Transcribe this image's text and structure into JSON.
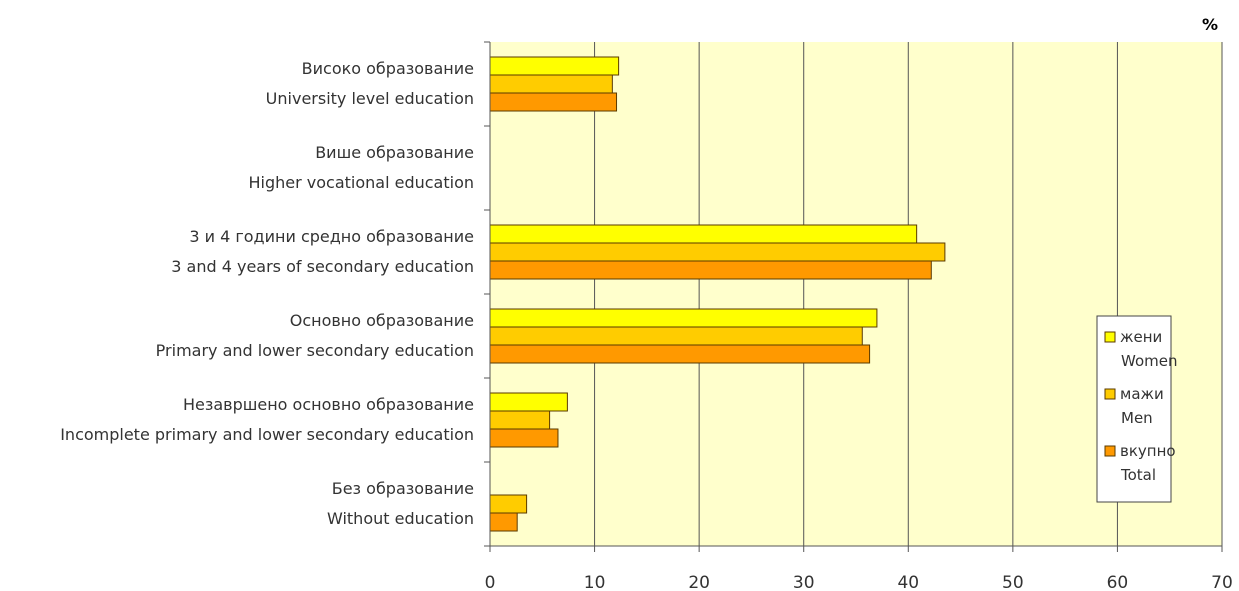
{
  "chart_data": {
    "type": "bar",
    "orientation": "horizontal",
    "unit_label": "%",
    "categories": [
      {
        "line1": "Високо образование",
        "line2": "University level education"
      },
      {
        "line1": "Више образование",
        "line2": "Higher vocational education"
      },
      {
        "line1": "3 и 4 години средно образование",
        "line2": "3 and 4 years of secondary education"
      },
      {
        "line1": "Основно образование",
        "line2": "Primary and lower secondary education"
      },
      {
        "line1": "Незавршено основно образование",
        "line2": "Incomplete primary and lower secondary education"
      },
      {
        "line1": "Без образование",
        "line2": "Without education"
      }
    ],
    "series": [
      {
        "name": "жени",
        "name_en": "Women",
        "color": "#FFFF00",
        "values": [
          12.3,
          0,
          40.8,
          37.0,
          7.4,
          0
        ]
      },
      {
        "name": "мажи",
        "name_en": "Men",
        "color": "#FFCC00",
        "values": [
          11.7,
          0,
          43.5,
          35.6,
          5.7,
          3.5
        ]
      },
      {
        "name": "вкупно",
        "name_en": "Total",
        "color": "#FF9900",
        "values": [
          12.1,
          0,
          42.2,
          36.3,
          6.5,
          2.6
        ]
      }
    ],
    "xlim": [
      0,
      70
    ],
    "xticks": [
      0,
      10,
      20,
      30,
      40,
      50,
      60,
      70
    ],
    "grid": true,
    "plot_background": "#FFFFCC",
    "legend_position": "right"
  }
}
